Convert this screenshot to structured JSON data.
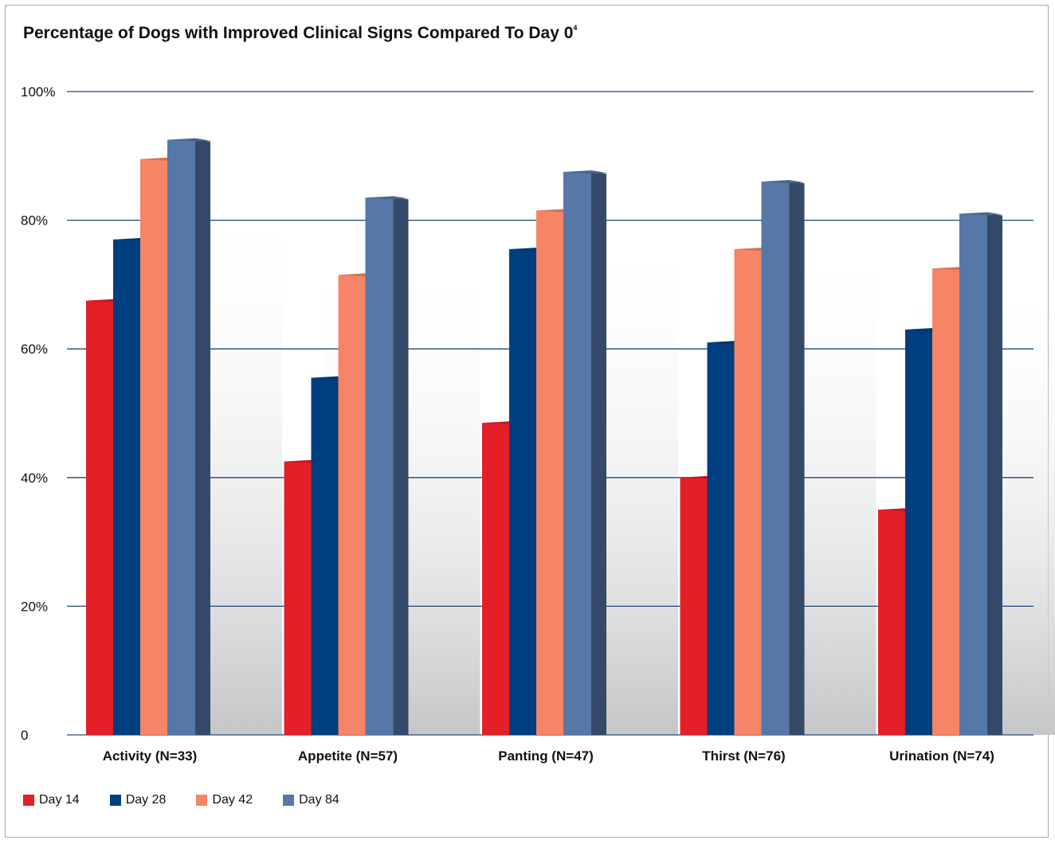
{
  "chart_data": {
    "type": "bar",
    "title": "Percentage of Dogs with Improved Clinical Signs Compared To Day 0",
    "title_superscript": "4",
    "categories": [
      "Activity (N=33)",
      "Appetite (N=57)",
      "Panting (N=47)",
      "Thirst (N=76)",
      "Urination (N=74)"
    ],
    "series": [
      {
        "name": "Day 14",
        "color": "#e41f28",
        "values": [
          67.5,
          42.5,
          48.5,
          40,
          35
        ]
      },
      {
        "name": "Day 28",
        "color": "#003f7f",
        "values": [
          77,
          55.5,
          75.5,
          61,
          63
        ]
      },
      {
        "name": "Day 42",
        "color": "#f58566",
        "values": [
          89.5,
          71.5,
          81.5,
          75.5,
          72.5
        ]
      },
      {
        "name": "Day 84",
        "color": "#5578a7",
        "values": [
          92.5,
          83.5,
          87.5,
          86,
          81
        ]
      }
    ],
    "ylim": [
      0,
      100
    ],
    "yticks": [
      0,
      20,
      40,
      60,
      80,
      100
    ],
    "ytick_labels": [
      "0",
      "20%",
      "40%",
      "60%",
      "80%",
      "100%"
    ],
    "grid": true,
    "legend_position": "bottom-left",
    "xlabel": "",
    "ylabel": ""
  }
}
